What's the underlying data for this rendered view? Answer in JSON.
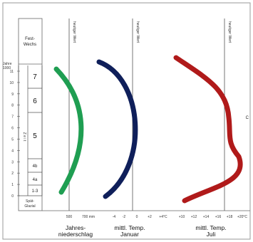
{
  "legend_header": [
    "Fest-",
    "Wechs"
  ],
  "years_label": [
    "Jahre",
    "1000"
  ],
  "z_label": "Z e i t",
  "ticks_time": [
    "0",
    "1",
    "2",
    "3",
    "4",
    "5",
    "6",
    "7",
    "8",
    "9",
    "10",
    "11"
  ],
  "stages": [
    "7",
    "6",
    "5",
    "4b",
    "4a",
    "1-3"
  ],
  "base_label": [
    "Spät-",
    "Glazial"
  ],
  "present_value_label": "heutiger Wert",
  "right_edge_text": "C",
  "panels": [
    {
      "title": [
        "Jahres-",
        "niederschlag"
      ],
      "x_ticks": [
        "500",
        "700 mm"
      ],
      "color": "#1f9e52"
    },
    {
      "title": [
        "mittl. Temp.",
        "Januar"
      ],
      "x_ticks": [
        "-4",
        "-2",
        "0",
        "+2",
        "+4°C"
      ],
      "color": "#0f1f5a"
    },
    {
      "title": [
        "mittl. Temp.",
        "Juli"
      ],
      "x_ticks": [
        "+10",
        "+12",
        "+14",
        "+16",
        "+18",
        "+20°C"
      ],
      "color": "#b01a1a"
    }
  ]
}
